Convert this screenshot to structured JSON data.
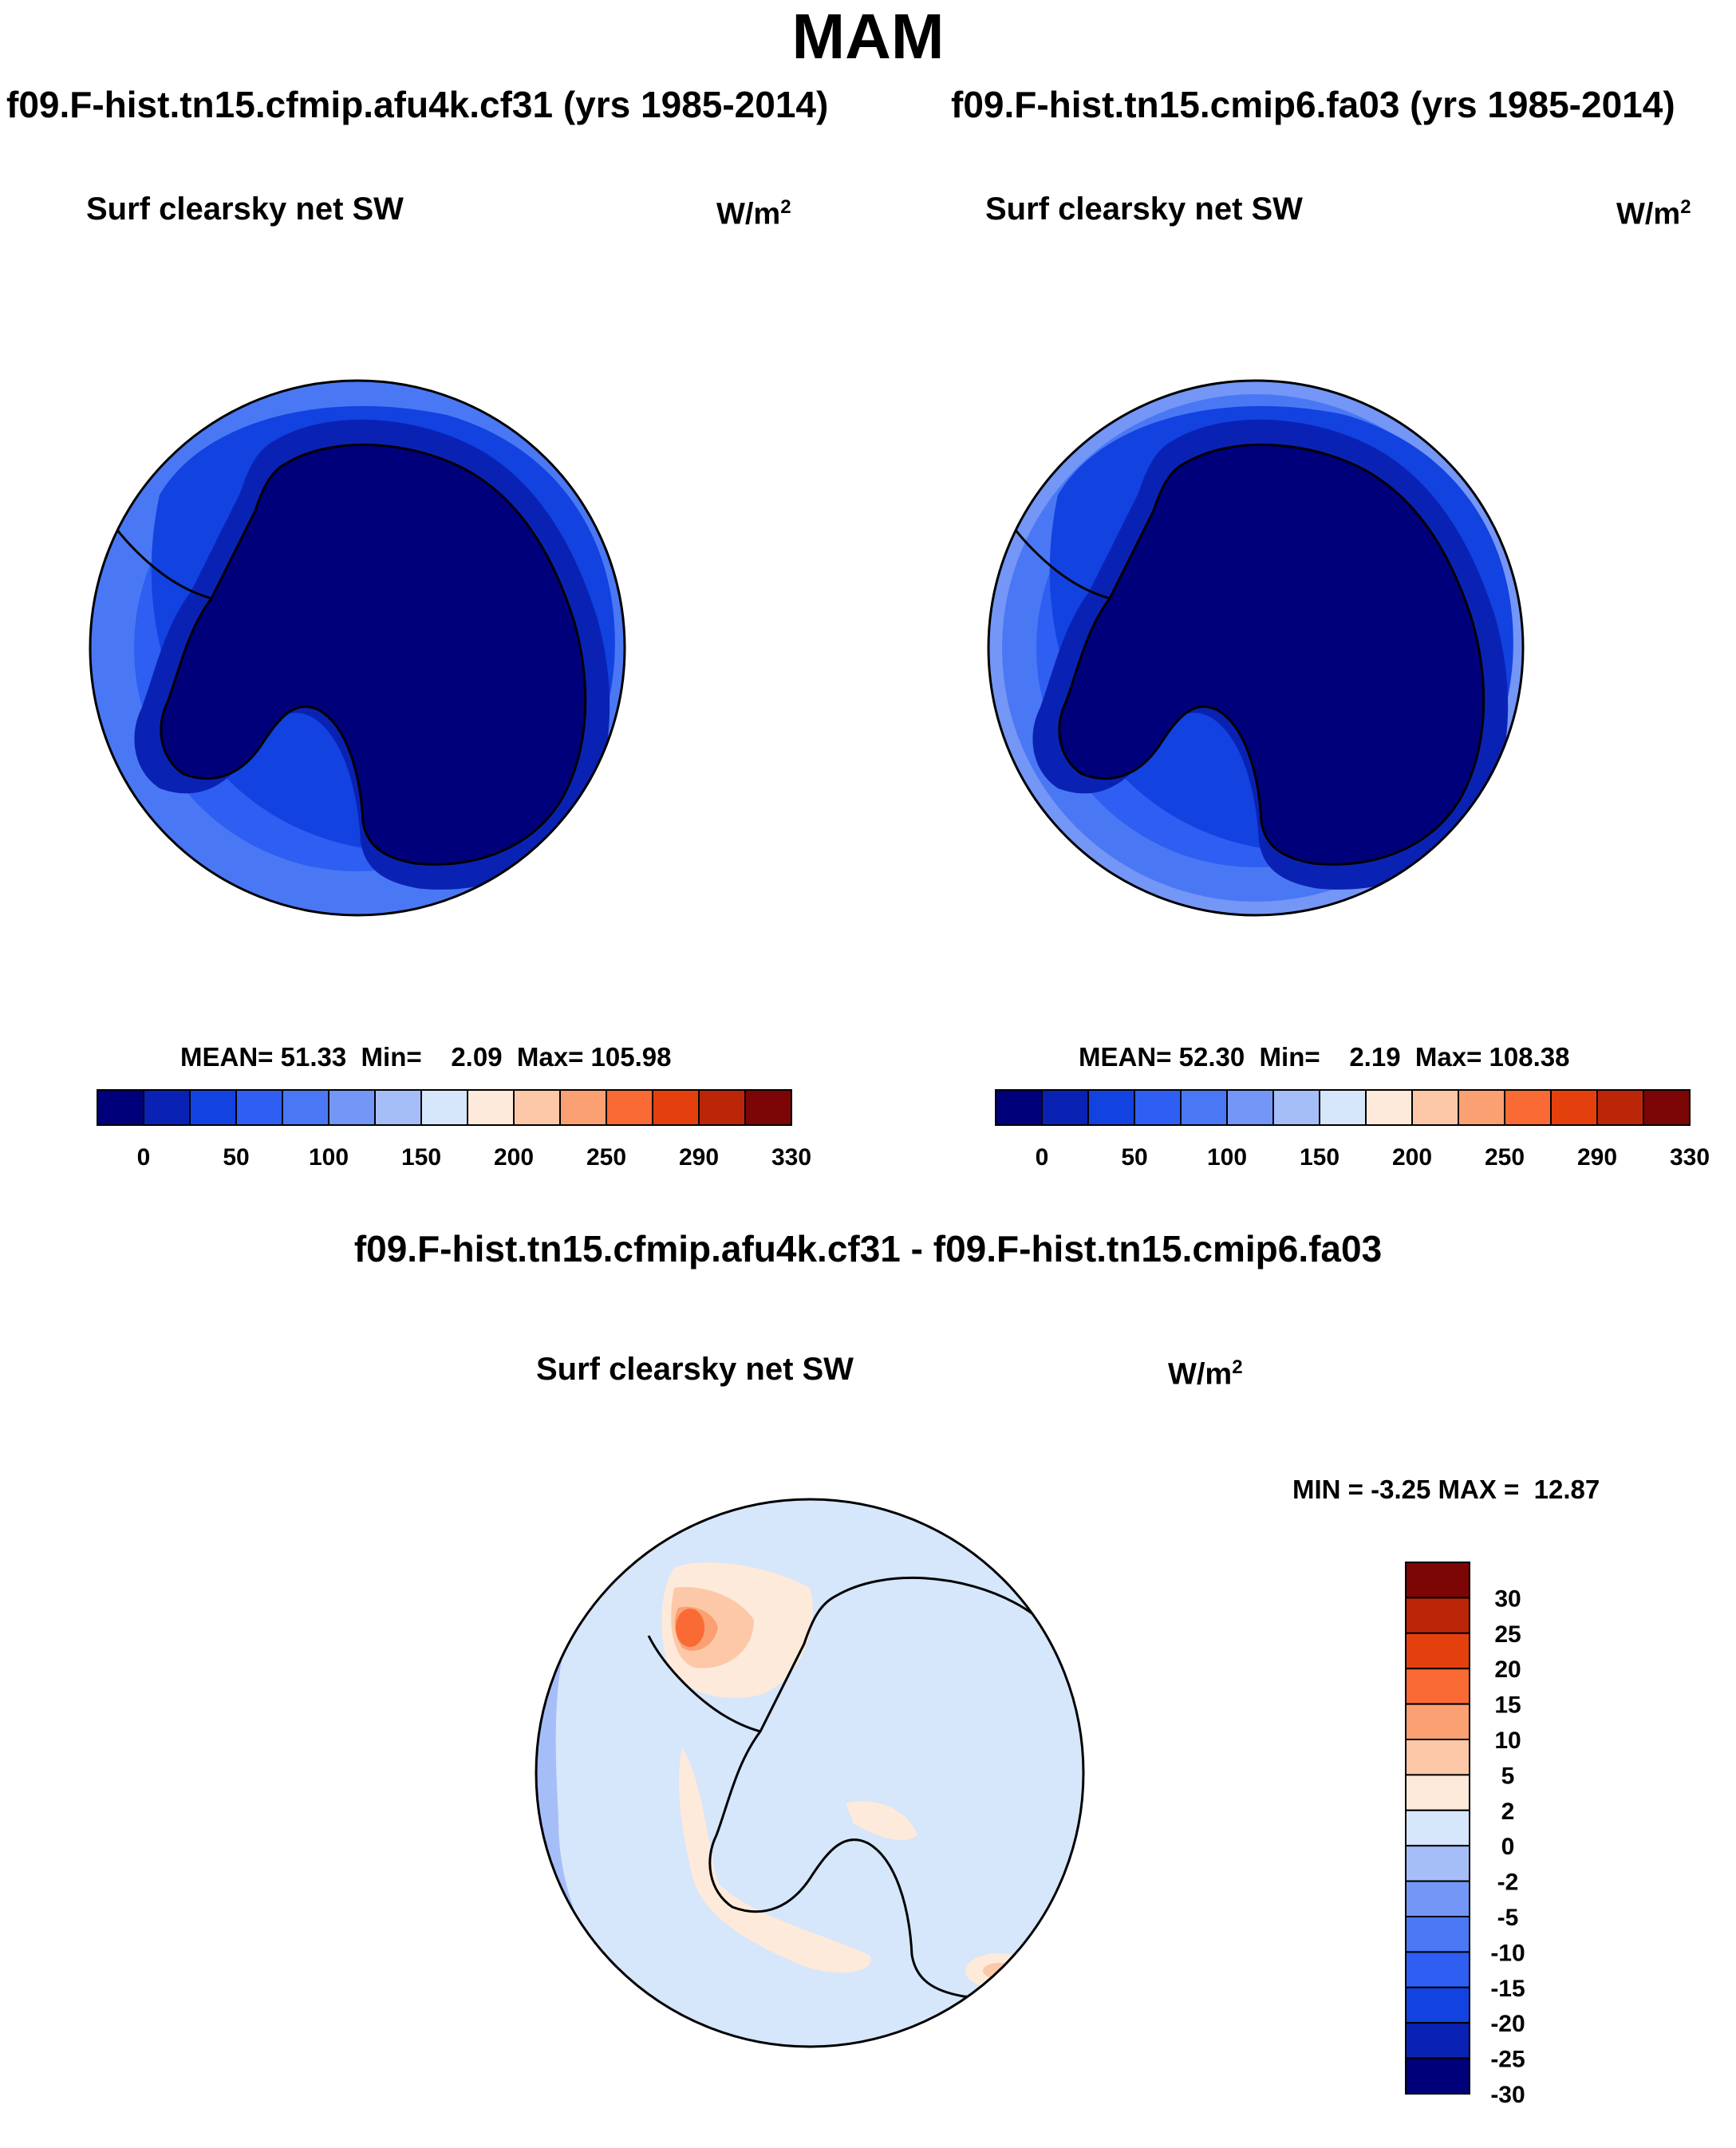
{
  "figure": {
    "title": "MAM",
    "left_panel": {
      "case": "f09.F-hist.tn15.cfmip.afu4k.cf31 (yrs 1985-2014)",
      "variable": "Surf clearsky net SW",
      "units": "W/m",
      "units_exp": "2",
      "mean_label": "MEAN=",
      "mean": "51.33",
      "min_label": "Min=",
      "min": "2.09",
      "max_label": "Max=",
      "max": "105.98"
    },
    "right_panel": {
      "case": "f09.F-hist.tn15.cmip6.fa03 (yrs 1985-2014)",
      "variable": "Surf clearsky net SW",
      "units": "W/m",
      "units_exp": "2",
      "mean_label": "MEAN=",
      "mean": "52.30",
      "min_label": "Min=",
      "min": "2.19",
      "max_label": "Max=",
      "max": "108.38"
    },
    "diff_panel": {
      "title": "f09.F-hist.tn15.cfmip.afu4k.cf31 - f09.F-hist.tn15.cmip6.fa03",
      "variable": "Surf clearsky net SW",
      "units": "W/m",
      "units_exp": "2",
      "min_label": "MIN =",
      "min": "-3.25",
      "max_label": "MAX =",
      "max": "12.87"
    }
  },
  "chart_data": [
    {
      "type": "map",
      "projection": "south-polar-stereographic",
      "panel": "left",
      "variable": "Surf clearsky net SW",
      "units": "W/m^2",
      "colorbar": {
        "orientation": "horizontal",
        "colors": [
          "#00007a",
          "#0a22b4",
          "#1242e0",
          "#2e5ef2",
          "#4a78f4",
          "#7496f6",
          "#a6bef8",
          "#d6e6fb",
          "#fdeada",
          "#fcc8a8",
          "#fba072",
          "#fa6a34",
          "#e4400e",
          "#bc2608",
          "#7c0606"
        ],
        "tick_labels": [
          "0",
          "50",
          "100",
          "150",
          "200",
          "250",
          "290",
          "330"
        ]
      }
    },
    {
      "type": "map",
      "projection": "south-polar-stereographic",
      "panel": "right",
      "variable": "Surf clearsky net SW",
      "units": "W/m^2",
      "colorbar": {
        "orientation": "horizontal",
        "colors": [
          "#00007a",
          "#0a22b4",
          "#1242e0",
          "#2e5ef2",
          "#4a78f4",
          "#7496f6",
          "#a6bef8",
          "#d6e6fb",
          "#fdeada",
          "#fcc8a8",
          "#fba072",
          "#fa6a34",
          "#e4400e",
          "#bc2608",
          "#7c0606"
        ],
        "tick_labels": [
          "0",
          "50",
          "100",
          "150",
          "200",
          "250",
          "290",
          "330"
        ]
      }
    },
    {
      "type": "map",
      "projection": "south-polar-stereographic",
      "panel": "difference",
      "variable": "Surf clearsky net SW",
      "units": "W/m^2",
      "colorbar": {
        "orientation": "vertical",
        "colors_top_to_bottom": [
          "#7c0606",
          "#bc2608",
          "#e4400e",
          "#fa6a34",
          "#fba072",
          "#fcc8a8",
          "#fdeada",
          "#d6e6fb",
          "#a6bef8",
          "#7496f6",
          "#4a78f4",
          "#2e5ef2",
          "#1242e0",
          "#0a22b4",
          "#00007a"
        ],
        "tick_labels_top_to_bottom": [
          "30",
          "25",
          "20",
          "15",
          "10",
          "5",
          "2",
          "0",
          "-2",
          "-5",
          "-10",
          "-15",
          "-20",
          "-25",
          "-30"
        ]
      }
    }
  ]
}
